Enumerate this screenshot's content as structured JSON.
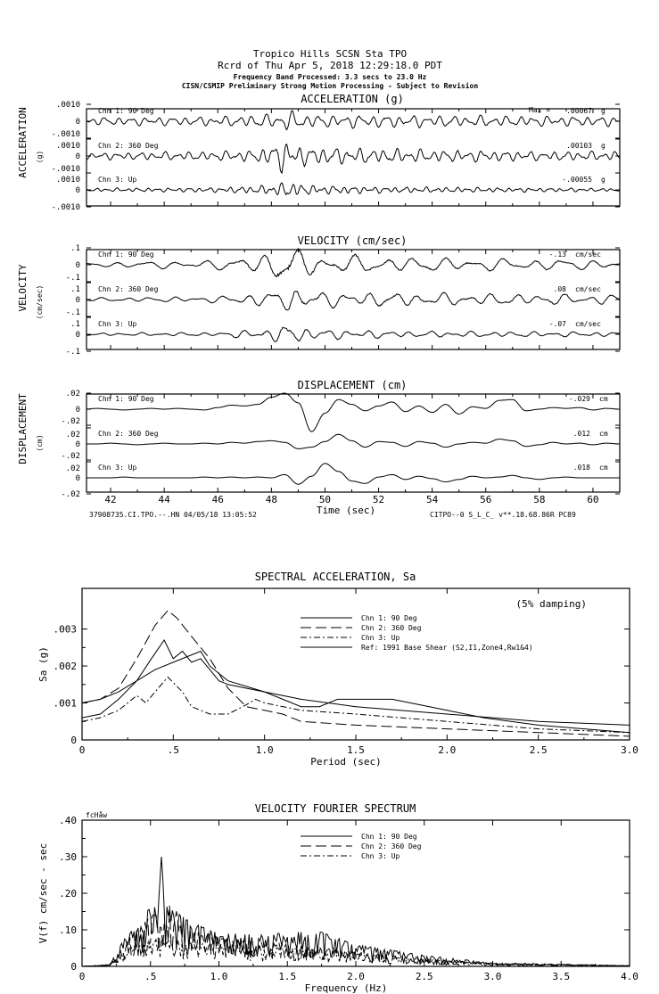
{
  "header": {
    "line1": "Tropico Hills    SCSN Sta TPO",
    "line2": "Rcrd of Thu Apr  5, 2018 12:29:18.0 PDT",
    "line3": "Frequency Band Processed: 3.3 secs to 23.0 Hz",
    "line4": "CISN/CSMIP Preliminary Strong Motion Processing - Subject to Revision"
  },
  "chart_data": [
    {
      "type": "line",
      "title": "ACCELERATION (g)",
      "ylabel": "ACCELERATION",
      "yunit": "(g)",
      "xlim": [
        41.1,
        61
      ],
      "ytick_labels": [
        ".0010",
        "0",
        "-.0010"
      ],
      "scale": 0.001,
      "max_prefix": "Max =",
      "series": [
        {
          "name": "Chn 1: 90 Deg",
          "max": ".00067",
          "unit": "g",
          "freq": 2.0,
          "envelope": [
            [
              41,
              0.00025
            ],
            [
              46,
              0.0003
            ],
            [
              48,
              0.00045
            ],
            [
              48.6,
              0.00065
            ],
            [
              49.5,
              0.0004
            ],
            [
              52,
              0.0004
            ],
            [
              56,
              0.00035
            ],
            [
              61,
              0.0003
            ]
          ]
        },
        {
          "name": "Chn 2: 360 Deg",
          "max": ".00103",
          "unit": "g",
          "freq": 2.2,
          "envelope": [
            [
              41,
              0.0002
            ],
            [
              46,
              0.0003
            ],
            [
              47.5,
              0.0004
            ],
            [
              48.4,
              0.001
            ],
            [
              49.2,
              0.0006
            ],
            [
              51,
              0.0005
            ],
            [
              54,
              0.0004
            ],
            [
              58,
              0.0003
            ],
            [
              61,
              0.0003
            ]
          ]
        },
        {
          "name": "Chn 3: Up",
          "max": "-.00055",
          "unit": "g",
          "freq": 2.6,
          "envelope": [
            [
              41,
              0.0001
            ],
            [
              46,
              0.00015
            ],
            [
              48,
              0.0003
            ],
            [
              48.6,
              0.00055
            ],
            [
              49.5,
              0.0003
            ],
            [
              52,
              0.0002
            ],
            [
              56,
              0.00015
            ],
            [
              61,
              0.0001
            ]
          ]
        }
      ]
    },
    {
      "type": "line",
      "title": "VELOCITY (cm/sec)",
      "ylabel": "VELOCITY",
      "yunit": "(cm/sec)",
      "xlim": [
        41.1,
        61
      ],
      "ytick_labels": [
        ".1",
        "0",
        "-.1"
      ],
      "scale": 0.1,
      "series": [
        {
          "name": "Chn 1: 90 Deg",
          "max": "-.13",
          "unit": "cm/sec",
          "freq": 0.9,
          "envelope": [
            [
              41,
              0.015
            ],
            [
              46,
              0.03
            ],
            [
              47.5,
              0.06
            ],
            [
              48.5,
              0.13
            ],
            [
              49.5,
              0.07
            ],
            [
              52,
              0.05
            ],
            [
              56,
              0.04
            ],
            [
              61,
              0.03
            ]
          ]
        },
        {
          "name": "Chn 2: 360 Deg",
          "max": ".08",
          "unit": "cm/sec",
          "freq": 1.1,
          "envelope": [
            [
              41,
              0.01
            ],
            [
              46,
              0.02
            ],
            [
              48,
              0.05
            ],
            [
              48.8,
              0.08
            ],
            [
              50,
              0.05
            ],
            [
              54,
              0.04
            ],
            [
              61,
              0.03
            ]
          ]
        },
        {
          "name": "Chn 3: Up",
          "max": "-.07",
          "unit": "cm/sec",
          "freq": 1.3,
          "envelope": [
            [
              41,
              0.008
            ],
            [
              46,
              0.012
            ],
            [
              48,
              0.04
            ],
            [
              48.7,
              0.07
            ],
            [
              49.5,
              0.035
            ],
            [
              53,
              0.02
            ],
            [
              61,
              0.015
            ]
          ]
        }
      ]
    },
    {
      "type": "line",
      "title": "DISPLACEMENT (cm)",
      "ylabel": "DISPLACEMENT",
      "yunit": "(cm)",
      "xlabel": "Time (sec)",
      "xlim": [
        41.1,
        61
      ],
      "xticks": [
        42,
        44,
        46,
        48,
        50,
        52,
        54,
        56,
        58,
        60
      ],
      "ytick_labels": [
        ".02",
        "0",
        "-.02"
      ],
      "scale": 0.02,
      "series": [
        {
          "name": "Chn 1: 90 Deg",
          "max": "-.029",
          "unit": "cm",
          "t0": 41,
          "dt": 0.5,
          "values": [
            0,
            0.001,
            0,
            -0.001,
            0,
            0.001,
            0,
            0.001,
            0,
            -0.001,
            0.002,
            0.005,
            0.004,
            0.006,
            0.015,
            0.02,
            0.008,
            -0.028,
            -0.005,
            0.012,
            0.006,
            -0.002,
            0.004,
            0.009,
            -0.003,
            0.004,
            -0.004,
            0.006,
            -0.006,
            0.003,
            0.001,
            0.011,
            0.012,
            -0.002,
            0,
            0.002,
            0.001,
            0.002,
            -0.001,
            0.001,
            0
          ]
        },
        {
          "name": "Chn 2: 360 Deg",
          "max": ".012",
          "unit": "cm",
          "t0": 41,
          "dt": 0.5,
          "values": [
            0,
            0,
            0.001,
            0,
            -0.001,
            0,
            0.001,
            0,
            0,
            0.001,
            0,
            0.002,
            0.001,
            0.003,
            0.004,
            0.002,
            -0.006,
            -0.004,
            0.003,
            0.012,
            0.004,
            -0.004,
            0.003,
            0.002,
            -0.003,
            0.003,
            0.001,
            -0.004,
            0,
            0.002,
            0.001,
            0.006,
            0.004,
            -0.003,
            -0.001,
            0.002,
            0,
            0.001,
            -0.001,
            0.001,
            0
          ]
        },
        {
          "name": "Chn 3: Up",
          "max": ".018",
          "unit": "cm",
          "t0": 41,
          "dt": 0.5,
          "values": [
            0,
            0,
            0,
            0.001,
            0,
            0,
            0,
            0,
            0,
            0.001,
            0,
            0.001,
            0,
            0.001,
            0,
            0.004,
            -0.008,
            0.002,
            0.018,
            0.008,
            -0.004,
            -0.007,
            0.001,
            0.004,
            -0.002,
            0.002,
            -0.001,
            -0.005,
            -0.002,
            0.002,
            0,
            0.001,
            0.003,
            0,
            -0.002,
            0,
            0.001,
            0,
            0,
            0,
            0
          ]
        }
      ]
    },
    {
      "type": "line",
      "title": "SPECTRAL ACCELERATION, Sa",
      "annotation": "(5% damping)",
      "xlabel": "Period (sec)",
      "ylabel": "Sa (g)",
      "xlim": [
        0,
        3.0
      ],
      "ylim": [
        0,
        0.0041
      ],
      "xticks": [
        0,
        0.5,
        1.0,
        1.5,
        2.0,
        2.5,
        3.0
      ],
      "xtick_labels": [
        "0",
        ".5",
        "1.0",
        "1.5",
        "2.0",
        "2.5",
        "3.0"
      ],
      "yticks": [
        0,
        0.001,
        0.002,
        0.003
      ],
      "ytick_labels": [
        "0",
        ".001",
        ".002",
        ".003"
      ],
      "legend": "top-right",
      "series": [
        {
          "name": "Chn 1: 90 Deg",
          "style": "solid",
          "points": [
            [
              0,
              0.0006
            ],
            [
              0.1,
              0.0007
            ],
            [
              0.2,
              0.0011
            ],
            [
              0.3,
              0.0016
            ],
            [
              0.38,
              0.0022
            ],
            [
              0.45,
              0.0027
            ],
            [
              0.5,
              0.0022
            ],
            [
              0.55,
              0.0024
            ],
            [
              0.6,
              0.0021
            ],
            [
              0.65,
              0.0022
            ],
            [
              0.7,
              0.0019
            ],
            [
              0.75,
              0.0016
            ],
            [
              0.8,
              0.0015
            ],
            [
              0.9,
              0.0014
            ],
            [
              1.0,
              0.0013
            ],
            [
              1.1,
              0.0011
            ],
            [
              1.2,
              0.0009
            ],
            [
              1.3,
              0.0009
            ],
            [
              1.4,
              0.0011
            ],
            [
              1.5,
              0.0011
            ],
            [
              1.7,
              0.0011
            ],
            [
              1.8,
              0.001
            ],
            [
              2.0,
              0.0008
            ],
            [
              2.2,
              0.0006
            ],
            [
              2.5,
              0.0004
            ],
            [
              3.0,
              0.0002
            ]
          ]
        },
        {
          "name": "Chn 2: 360 Deg",
          "style": "dashed",
          "points": [
            [
              0,
              0.001
            ],
            [
              0.1,
              0.0011
            ],
            [
              0.2,
              0.0014
            ],
            [
              0.3,
              0.0022
            ],
            [
              0.4,
              0.0031
            ],
            [
              0.47,
              0.0035
            ],
            [
              0.52,
              0.0033
            ],
            [
              0.6,
              0.0028
            ],
            [
              0.7,
              0.0022
            ],
            [
              0.8,
              0.0014
            ],
            [
              0.9,
              0.0009
            ],
            [
              1.0,
              0.0008
            ],
            [
              1.1,
              0.0007
            ],
            [
              1.2,
              0.0005
            ],
            [
              1.5,
              0.0004
            ],
            [
              2.0,
              0.0003
            ],
            [
              2.5,
              0.0002
            ],
            [
              3.0,
              0.0001
            ]
          ]
        },
        {
          "name": "Chn 3: Up",
          "style": "dashdot",
          "points": [
            [
              0,
              0.0005
            ],
            [
              0.1,
              0.0006
            ],
            [
              0.2,
              0.0008
            ],
            [
              0.3,
              0.0012
            ],
            [
              0.35,
              0.001
            ],
            [
              0.4,
              0.0013
            ],
            [
              0.47,
              0.0017
            ],
            [
              0.55,
              0.0013
            ],
            [
              0.6,
              0.0009
            ],
            [
              0.7,
              0.0007
            ],
            [
              0.8,
              0.0007
            ],
            [
              0.9,
              0.00095
            ],
            [
              0.95,
              0.0011
            ],
            [
              1.0,
              0.001
            ],
            [
              1.2,
              0.0008
            ],
            [
              1.5,
              0.0007
            ],
            [
              2.0,
              0.0005
            ],
            [
              2.5,
              0.0003
            ],
            [
              3.0,
              0.0002
            ]
          ]
        },
        {
          "name": "Ref: 1991 Base Shear (S2,I1,Zone4,Rw1&4)",
          "style": "solid",
          "points": [
            [
              0,
              0.001
            ],
            [
              0.1,
              0.0011
            ],
            [
              0.2,
              0.0013
            ],
            [
              0.3,
              0.0016
            ],
            [
              0.4,
              0.0019
            ],
            [
              0.5,
              0.0021
            ],
            [
              0.6,
              0.0023
            ],
            [
              0.65,
              0.0024
            ],
            [
              0.7,
              0.002
            ],
            [
              0.8,
              0.0016
            ],
            [
              1.0,
              0.0013
            ],
            [
              1.2,
              0.0011
            ],
            [
              1.5,
              0.0009
            ],
            [
              2.0,
              0.0007
            ],
            [
              2.5,
              0.0005
            ],
            [
              3.0,
              0.0004
            ]
          ]
        }
      ]
    },
    {
      "type": "line",
      "title": "VELOCITY FOURIER SPECTRUM",
      "corner_label": "fcHåw",
      "xlabel": "Frequency (Hz)",
      "ylabel": "V(f)   cm/sec - sec",
      "xlim": [
        0,
        4.0
      ],
      "ylim": [
        0,
        0.4
      ],
      "xticks": [
        0,
        0.5,
        1.0,
        1.5,
        2.0,
        2.5,
        3.0,
        3.5,
        4.0
      ],
      "xtick_labels": [
        "0",
        ".5",
        "1.0",
        "1.5",
        "2.0",
        "2.5",
        "3.0",
        "3.5",
        "4.0"
      ],
      "yticks": [
        0,
        0.1,
        0.2,
        0.3,
        0.4
      ],
      "ytick_labels": [
        "0",
        ".10",
        ".20",
        ".30",
        ".40"
      ],
      "legend": "top-center",
      "series": [
        {
          "name": "Chn 1: 90 Deg",
          "style": "solid",
          "peak": [
            0.58,
            0.3
          ],
          "envelope": [
            [
              0,
              0
            ],
            [
              0.2,
              0.005
            ],
            [
              0.3,
              0.07
            ],
            [
              0.45,
              0.16
            ],
            [
              0.6,
              0.17
            ],
            [
              0.8,
              0.12
            ],
            [
              1.0,
              0.09
            ],
            [
              1.5,
              0.09
            ],
            [
              1.7,
              0.1
            ],
            [
              2.0,
              0.06
            ],
            [
              2.5,
              0.03
            ],
            [
              3.0,
              0.01
            ],
            [
              4.0,
              0.002
            ]
          ]
        },
        {
          "name": "Chn 2: 360 Deg",
          "style": "dashed",
          "envelope": [
            [
              0,
              0
            ],
            [
              0.2,
              0.004
            ],
            [
              0.3,
              0.06
            ],
            [
              0.5,
              0.14
            ],
            [
              0.65,
              0.17
            ],
            [
              0.8,
              0.1
            ],
            [
              1.0,
              0.08
            ],
            [
              1.5,
              0.06
            ],
            [
              2.0,
              0.04
            ],
            [
              2.5,
              0.02
            ],
            [
              3.0,
              0.008
            ],
            [
              4.0,
              0.002
            ]
          ]
        },
        {
          "name": "Chn 3: Up",
          "style": "dashdot",
          "envelope": [
            [
              0,
              0
            ],
            [
              0.2,
              0.003
            ],
            [
              0.3,
              0.04
            ],
            [
              0.5,
              0.08
            ],
            [
              0.7,
              0.07
            ],
            [
              1.0,
              0.06
            ],
            [
              1.5,
              0.05
            ],
            [
              2.0,
              0.04
            ],
            [
              2.5,
              0.02
            ],
            [
              3.0,
              0.008
            ],
            [
              4.0,
              0.002
            ]
          ]
        }
      ]
    }
  ],
  "footer": {
    "left": "37908735.CI.TPO.--.HN 04/05/18 13:05:52",
    "right": "CITPO--0  S_L_C_  v**.18.68.86R PC89"
  }
}
